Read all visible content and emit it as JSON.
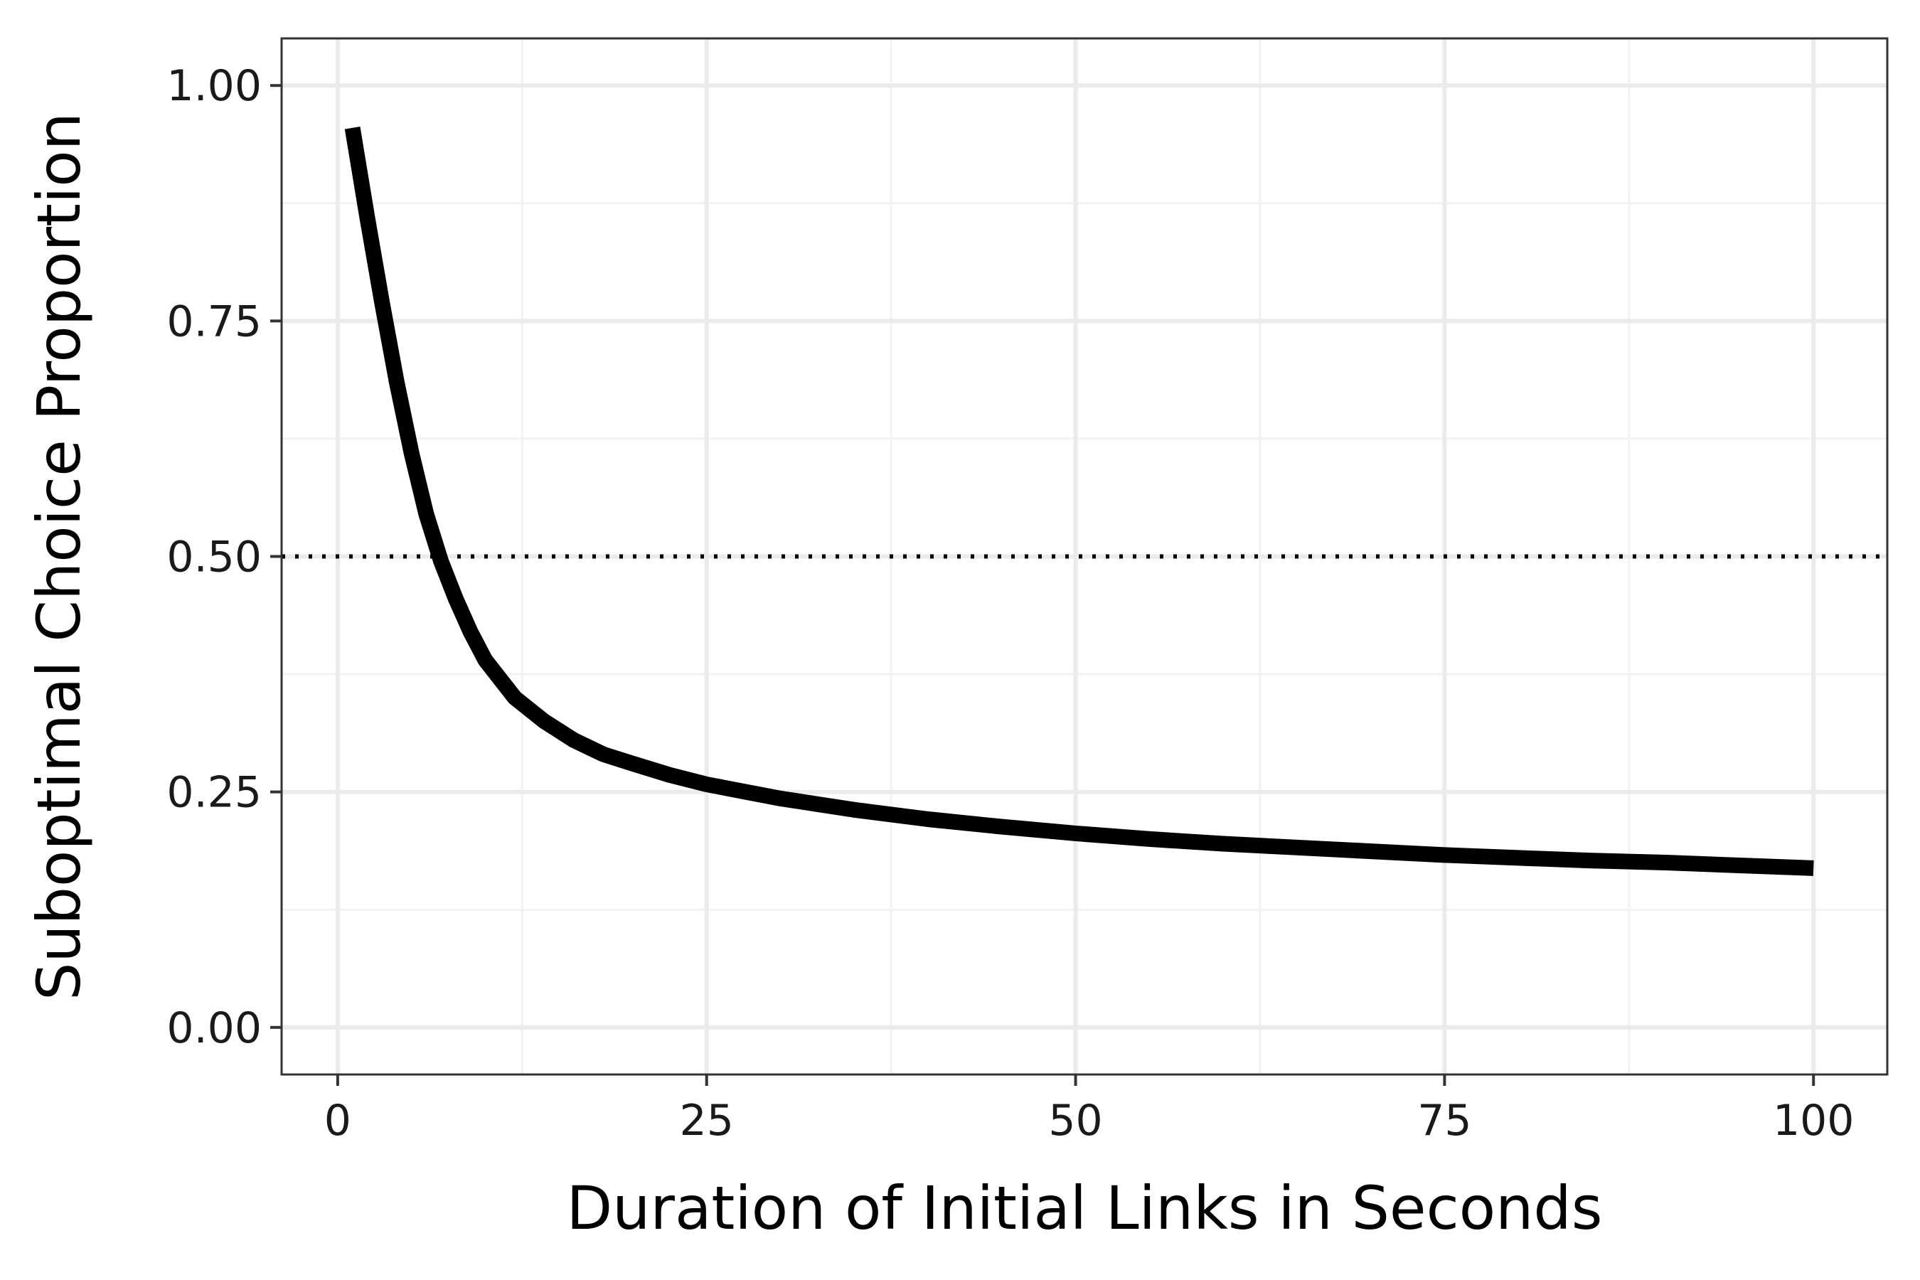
{
  "chart_data": {
    "type": "line",
    "title": "",
    "xlabel": "Duration of Initial Links in Seconds",
    "ylabel": "Suboptimal Choice Proportion",
    "xlim": [
      -3.8,
      105
    ],
    "ylim": [
      -0.05,
      1.05
    ],
    "x_ticks": [
      0,
      25,
      50,
      75,
      100
    ],
    "x_tick_labels": [
      "0",
      "25",
      "50",
      "75",
      "100"
    ],
    "y_ticks": [
      0.0,
      0.25,
      0.5,
      0.75,
      1.0
    ],
    "y_tick_labels": [
      "0.00",
      "0.25",
      "0.50",
      "0.75",
      "1.00"
    ],
    "grid": true,
    "legend": "none",
    "series": [
      {
        "x": [
          1,
          2,
          3,
          4,
          5,
          6,
          7,
          8,
          9,
          10,
          12,
          14,
          16,
          18,
          20,
          22.5,
          25,
          30,
          35,
          40,
          45,
          50,
          55,
          60,
          65,
          70,
          75,
          80,
          85,
          90,
          95,
          100
        ],
        "y": [
          0.955,
          0.86,
          0.77,
          0.685,
          0.61,
          0.545,
          0.495,
          0.455,
          0.42,
          0.39,
          0.35,
          0.325,
          0.305,
          0.29,
          0.28,
          0.268,
          0.258,
          0.243,
          0.231,
          0.221,
          0.213,
          0.206,
          0.2,
          0.195,
          0.191,
          0.187,
          0.183,
          0.18,
          0.177,
          0.175,
          0.172,
          0.169
        ]
      }
    ],
    "reference_lines": [
      {
        "orientation": "horizontal",
        "y": 0.5,
        "style": "dotted"
      }
    ],
    "colors": {
      "line": "#000000",
      "reference_line": "#000000",
      "grid_major": "#ebebeb",
      "grid_minor": "#f2f2f2",
      "panel_border": "#333333",
      "background": "#ffffff"
    }
  }
}
